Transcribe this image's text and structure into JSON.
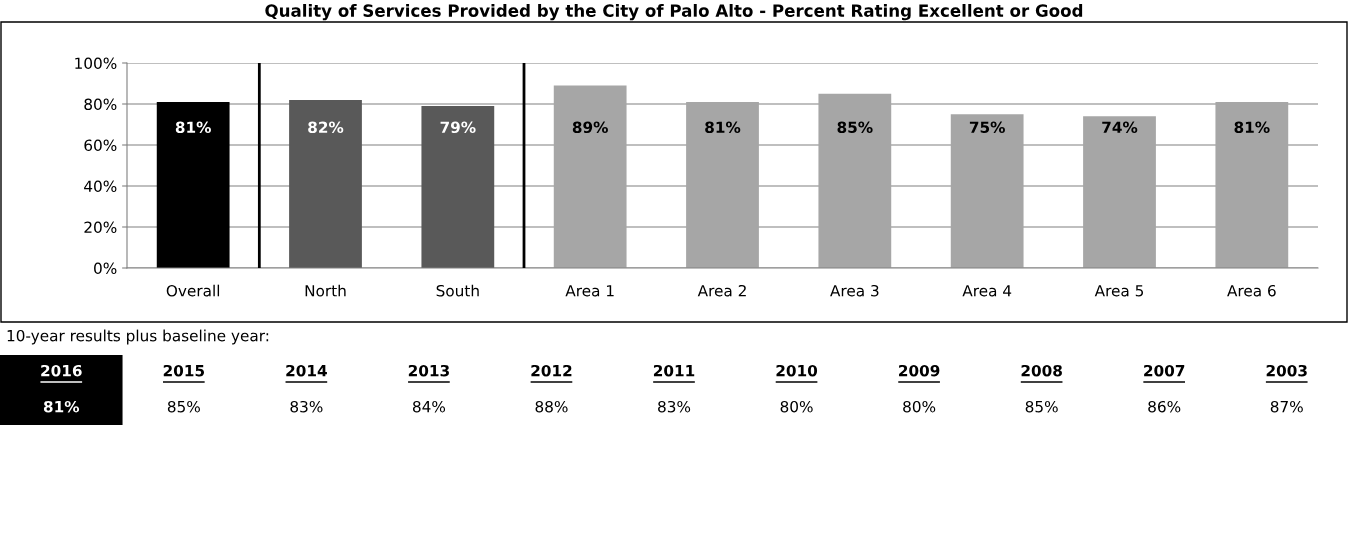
{
  "chart_data": {
    "type": "bar",
    "title": "Quality of Services Provided by the City of Palo Alto - Percent Rating Excellent or Good",
    "categories": [
      "Overall",
      "North",
      "South",
      "Area 1",
      "Area 2",
      "Area 3",
      "Area 4",
      "Area 5",
      "Area 6"
    ],
    "values": [
      81,
      82,
      79,
      89,
      81,
      85,
      75,
      74,
      81
    ],
    "colors": [
      "#000000",
      "#595959",
      "#595959",
      "#a6a6a6",
      "#a6a6a6",
      "#a6a6a6",
      "#a6a6a6",
      "#a6a6a6",
      "#a6a6a6"
    ],
    "value_labels": [
      "81%",
      "82%",
      "79%",
      "89%",
      "81%",
      "85%",
      "75%",
      "74%",
      "81%"
    ],
    "ylim": [
      0,
      100
    ],
    "yticks": [
      {
        "value": 0,
        "label": "0%"
      },
      {
        "value": 20,
        "label": "20%"
      },
      {
        "value": 40,
        "label": "40%"
      },
      {
        "value": 60,
        "label": "60%"
      },
      {
        "value": 80,
        "label": "80%"
      },
      {
        "value": 100,
        "label": "100%"
      }
    ],
    "grid": "y",
    "legend": false,
    "annotations": [
      "10-year results plus baseline year:",
      "2016",
      "81%",
      "2015",
      "85%",
      "2014",
      "83%",
      "2013",
      "84%",
      "2012",
      "88%",
      "2011",
      "83%",
      "2010",
      "80%",
      "2009",
      "80%",
      "2008",
      "85%",
      "2007",
      "86%",
      "2003",
      "87%"
    ]
  }
}
